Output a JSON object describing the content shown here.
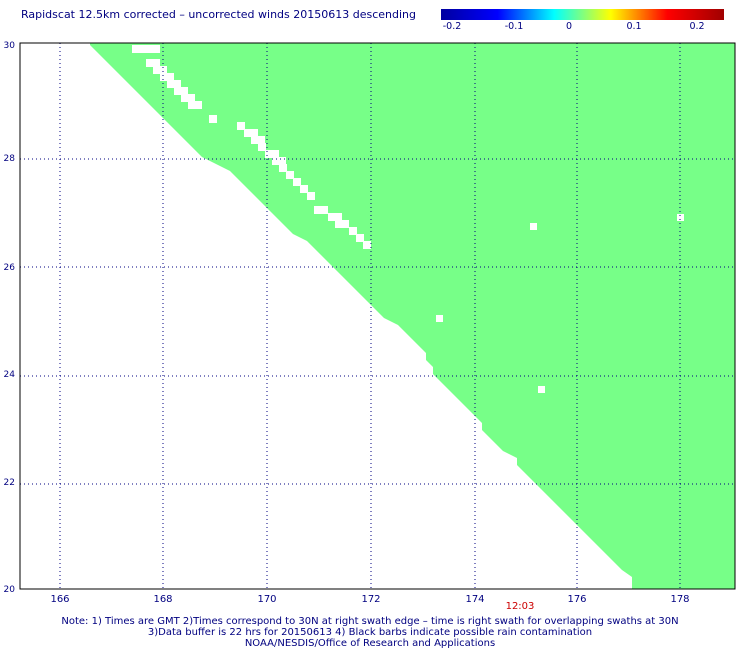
{
  "title": "Rapidscat 12.5km corrected – uncorrected winds 20150613 descending",
  "colorbar": {
    "labels": [
      "-0.2",
      "-0.1",
      "0",
      "0.1",
      "0.2"
    ],
    "colors": [
      "#0000a0",
      "#0000ff",
      "#00ffff",
      "#ffff00",
      "#ff0000",
      "#a00000"
    ]
  },
  "axes": {
    "x_ticks": [
      "166",
      "168",
      "170",
      "172",
      "174",
      "176",
      "178"
    ],
    "y_ticks": [
      "20",
      "22",
      "24",
      "26",
      "28",
      "30"
    ],
    "tick_color": "#000080"
  },
  "swath": {
    "fill_color": "#77ff88",
    "time_label": "12:03",
    "time_color": "#cc0000"
  },
  "notes": {
    "line1": "Note: 1) Times are GMT 2)Times correspond to 30N at right swath edge – time is right swath for overlapping swaths at 30N",
    "line2": "3)Data buffer is 22 hrs for 20150613 4) Black barbs indicate possible rain contamination",
    "line3": "NOAA/NESDIS/Office of Research and Applications"
  }
}
